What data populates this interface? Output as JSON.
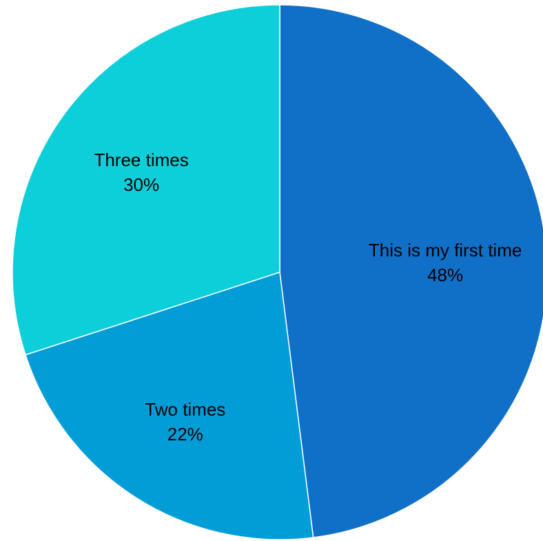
{
  "chart_data": {
    "type": "pie",
    "title": "",
    "start_angle_deg": 0,
    "direction": "clockwise",
    "slices": [
      {
        "label": "This is my first time",
        "percent_label": "48%",
        "value": 48,
        "color": "#1070C8"
      },
      {
        "label": "Two times",
        "percent_label": "22%",
        "value": 22,
        "color": "#029DD6"
      },
      {
        "label": "Three times",
        "percent_label": "30%",
        "value": 30,
        "color": "#0DCFDA"
      }
    ]
  }
}
